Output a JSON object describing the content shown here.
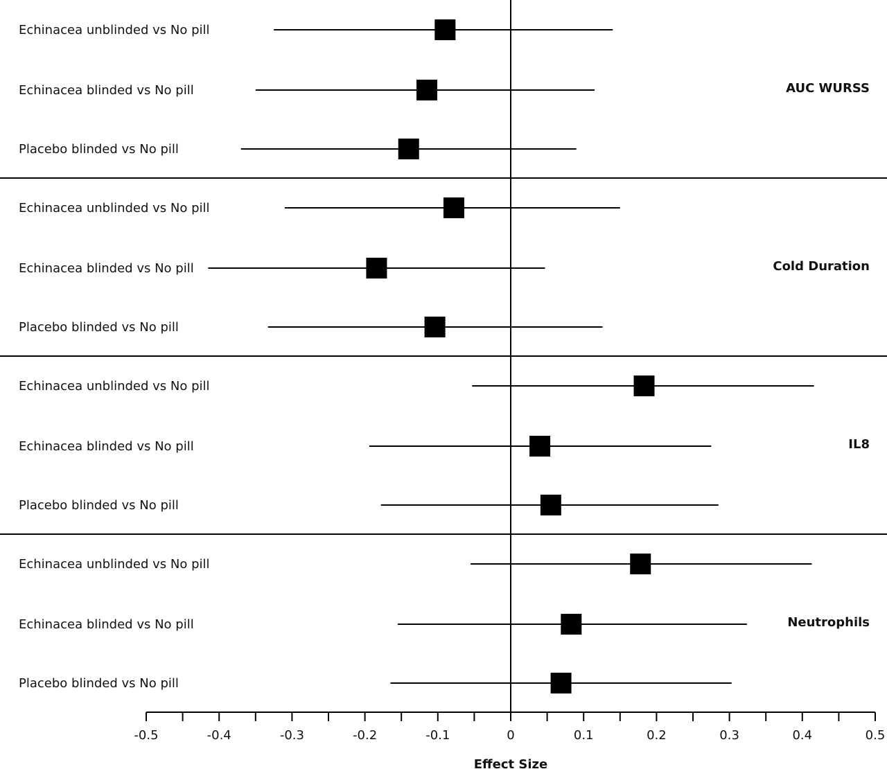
{
  "chart_data": {
    "type": "forest",
    "xlabel": "Effect Size",
    "xlim": [
      -0.5,
      0.5
    ],
    "xticks": [
      -0.5,
      -0.4,
      -0.3,
      -0.2,
      -0.1,
      0,
      0.1,
      0.2,
      0.3,
      0.4,
      0.5
    ],
    "xtick_labels": [
      "-0.5",
      "-0.4",
      "-0.3",
      "-0.2",
      "-0.1",
      "0",
      "0.1",
      "0.2",
      "0.3",
      "0.4",
      "0.5"
    ],
    "reference_line": 0,
    "marker_color": "#000000",
    "groups": [
      {
        "name": "AUC WURSS",
        "rows": [
          {
            "label": "Echinacea unblinded vs No pill",
            "estimate": -0.09,
            "lower": -0.325,
            "upper": 0.14
          },
          {
            "label": "Echinacea blinded vs No pill",
            "estimate": -0.115,
            "lower": -0.35,
            "upper": 0.115
          },
          {
            "label": "Placebo blinded vs No pill",
            "estimate": -0.14,
            "lower": -0.37,
            "upper": 0.09
          }
        ]
      },
      {
        "name": "Cold Duration",
        "rows": [
          {
            "label": "Echinacea unblinded vs No pill",
            "estimate": -0.078,
            "lower": -0.31,
            "upper": 0.15
          },
          {
            "label": "Echinacea blinded vs No pill",
            "estimate": -0.184,
            "lower": -0.415,
            "upper": 0.047
          },
          {
            "label": "Placebo blinded vs No pill",
            "estimate": -0.104,
            "lower": -0.333,
            "upper": 0.126
          }
        ]
      },
      {
        "name": "IL8",
        "rows": [
          {
            "label": "Echinacea unblinded vs No pill",
            "estimate": 0.183,
            "lower": -0.053,
            "upper": 0.416
          },
          {
            "label": "Echinacea blinded vs No pill",
            "estimate": 0.04,
            "lower": -0.194,
            "upper": 0.275
          },
          {
            "label": "Placebo blinded vs No pill",
            "estimate": 0.055,
            "lower": -0.178,
            "upper": 0.285
          }
        ]
      },
      {
        "name": "Neutrophils",
        "rows": [
          {
            "label": "Echinacea unblinded vs No pill",
            "estimate": 0.178,
            "lower": -0.055,
            "upper": 0.413
          },
          {
            "label": "Echinacea blinded vs No pill",
            "estimate": 0.083,
            "lower": -0.155,
            "upper": 0.324
          },
          {
            "label": "Placebo blinded vs No pill",
            "estimate": 0.069,
            "lower": -0.165,
            "upper": 0.303
          }
        ]
      }
    ]
  }
}
